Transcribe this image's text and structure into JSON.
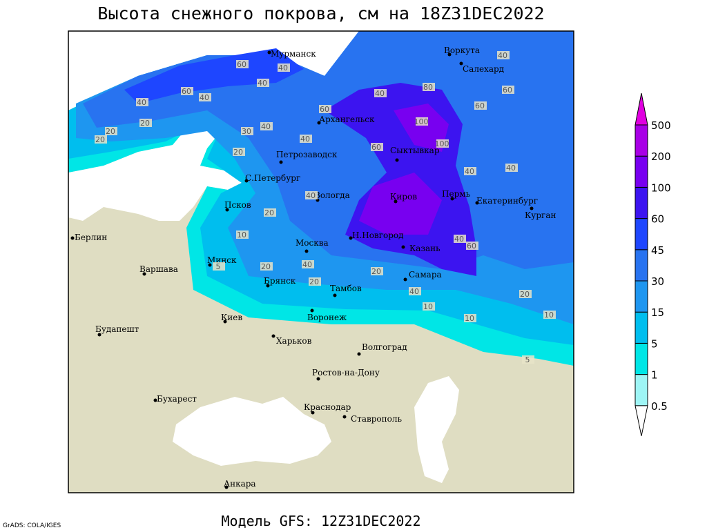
{
  "title": "Высота снежного покрова, см на 18Z31DEC2022",
  "footer": "Модель GFS: 12Z31DEC2022",
  "credit": "GrADS: COLA/IGES",
  "colorbar": {
    "levels": [
      0.5,
      1,
      5,
      15,
      30,
      45,
      60,
      100,
      200,
      500
    ],
    "colors": [
      "#ffffff",
      "#9ef5f5",
      "#00e6e6",
      "#00beee",
      "#1e96f0",
      "#2873f0",
      "#1e46ff",
      "#3c14f0",
      "#7800f0",
      "#a800e6",
      "#e000e0"
    ]
  },
  "cities": [
    "Мурманск",
    "Воркута",
    "Салехард",
    "Архангельск",
    "Петрозаводск",
    "Сыктывкар",
    "С.Петербург",
    "Вологда",
    "Киров",
    "Пермь",
    "Екатеринбург",
    "Курган",
    "Псков",
    "Н.Новгород",
    "Казань",
    "Москва",
    "Берлин",
    "Минск",
    "Варшава",
    "Брянск",
    "Тамбов",
    "Самара",
    "Киев",
    "Воронеж",
    "Будапешт",
    "Харьков",
    "Волгоград",
    "Ростов-на-Дону",
    "Бухарест",
    "Краснодар",
    "Ставрополь",
    "Анкара"
  ],
  "contour_labels": [
    60,
    40,
    60,
    40,
    20,
    20,
    40,
    30,
    40,
    20,
    20,
    40,
    40,
    60,
    40,
    80,
    60,
    40,
    60,
    100,
    100,
    60,
    40,
    40,
    40,
    20,
    10,
    5,
    20,
    40,
    20,
    10,
    20,
    10,
    10,
    5,
    20,
    40,
    60,
    40
  ]
}
